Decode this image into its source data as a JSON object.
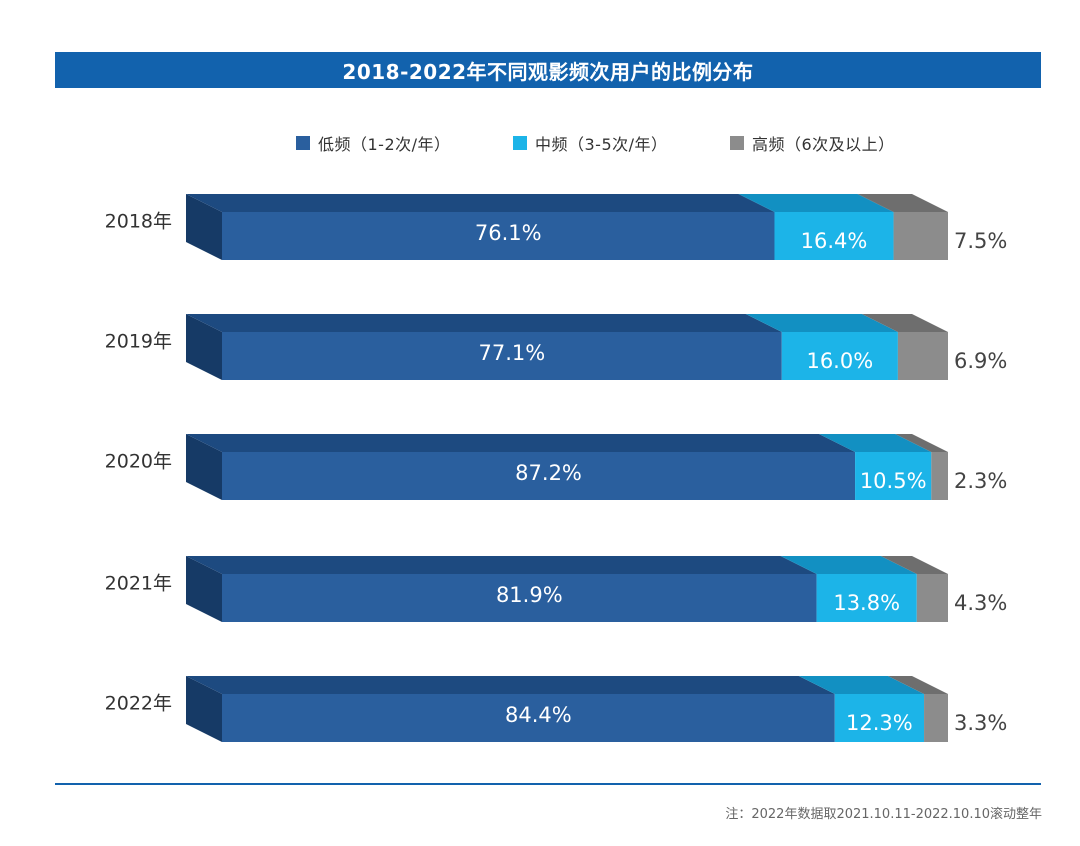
{
  "title": "2018-2022年不同观影频次用户的比例分布",
  "colors": {
    "title_bar": "#1262ad",
    "low_front": "#2a5f9e",
    "low_top": "#1d4a80",
    "low_side": "#163a66",
    "mid_front": "#1cb4e8",
    "mid_top": "#1290c2",
    "high_front": "#8c8c8c",
    "high_top": "#6e6e6e"
  },
  "legend": [
    {
      "label": "低频（1-2次/年）",
      "color": "#2a5f9e"
    },
    {
      "label": "中频（3-5次/年）",
      "color": "#1cb4e8"
    },
    {
      "label": "高频（6次及以上）",
      "color": "#8c8c8c"
    }
  ],
  "chart_data": {
    "type": "bar",
    "orientation": "horizontal",
    "stacked": true,
    "title": "2018-2022年不同观影频次用户的比例分布",
    "categories": [
      "2018年",
      "2019年",
      "2020年",
      "2021年",
      "2022年"
    ],
    "series": [
      {
        "name": "低频（1-2次/年）",
        "values": [
          76.1,
          77.1,
          87.2,
          81.9,
          84.4
        ],
        "labels": [
          "76.1%",
          "77.1%",
          "87.2%",
          "81.9%",
          "84.4%"
        ]
      },
      {
        "name": "中频（3-5次/年）",
        "values": [
          16.4,
          16.0,
          10.5,
          13.8,
          12.3
        ],
        "labels": [
          "16.4%",
          "16.0%",
          "10.5%",
          "13.8%",
          "12.3%"
        ]
      },
      {
        "name": "高频（6次及以上）",
        "values": [
          7.5,
          6.9,
          2.3,
          4.3,
          3.3
        ],
        "labels": [
          "7.5%",
          "6.9%",
          "2.3%",
          "4.3%",
          "3.3%"
        ]
      }
    ],
    "xlim": [
      0,
      100
    ],
    "legend_position": "top"
  },
  "footnote": "注：2022年数据取2021.10.11-2022.10.10滚动整年"
}
